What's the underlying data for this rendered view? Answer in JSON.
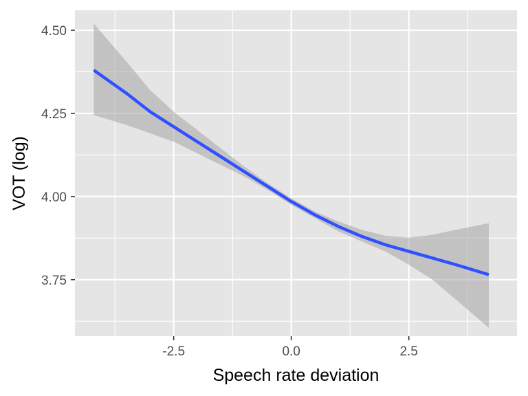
{
  "chart_data": {
    "type": "line",
    "title": "",
    "xlabel": "Speech rate deviation",
    "ylabel": "VOT (log)",
    "xlim": [
      -4.6,
      4.8
    ],
    "ylim": [
      3.58,
      4.56
    ],
    "x_ticks": [
      -2.5,
      0.0,
      2.5
    ],
    "x_tick_labels": [
      "-2.5",
      "0.0",
      "2.5"
    ],
    "y_ticks": [
      3.75,
      4.0,
      4.25,
      4.5
    ],
    "y_tick_labels": [
      "3.75",
      "4.00",
      "4.25",
      "4.50"
    ],
    "grid": true,
    "colors": {
      "panel": "#e5e5e5",
      "grid": "#ffffff",
      "line": "#3050ff",
      "band": "#a6a6a6",
      "tick": "#333333"
    },
    "series": [
      {
        "x": [
          -4.2,
          -3.5,
          -3.0,
          -2.5,
          -2.0,
          -1.5,
          -1.0,
          -0.5,
          0.0,
          0.5,
          1.0,
          1.5,
          2.0,
          2.5,
          3.0,
          3.5,
          4.2
        ],
        "y": [
          4.38,
          4.31,
          4.255,
          4.21,
          4.165,
          4.12,
          4.075,
          4.03,
          3.985,
          3.945,
          3.91,
          3.88,
          3.855,
          3.835,
          3.815,
          3.795,
          3.765
        ],
        "lower": [
          4.245,
          4.215,
          4.19,
          4.165,
          4.13,
          4.095,
          4.06,
          4.02,
          3.975,
          3.935,
          3.895,
          3.865,
          3.835,
          3.795,
          3.75,
          3.69,
          3.605
        ],
        "upper": [
          4.52,
          4.405,
          4.32,
          4.255,
          4.2,
          4.145,
          4.09,
          4.04,
          3.995,
          3.955,
          3.925,
          3.9,
          3.882,
          3.876,
          3.885,
          3.9,
          3.92
        ]
      }
    ]
  }
}
